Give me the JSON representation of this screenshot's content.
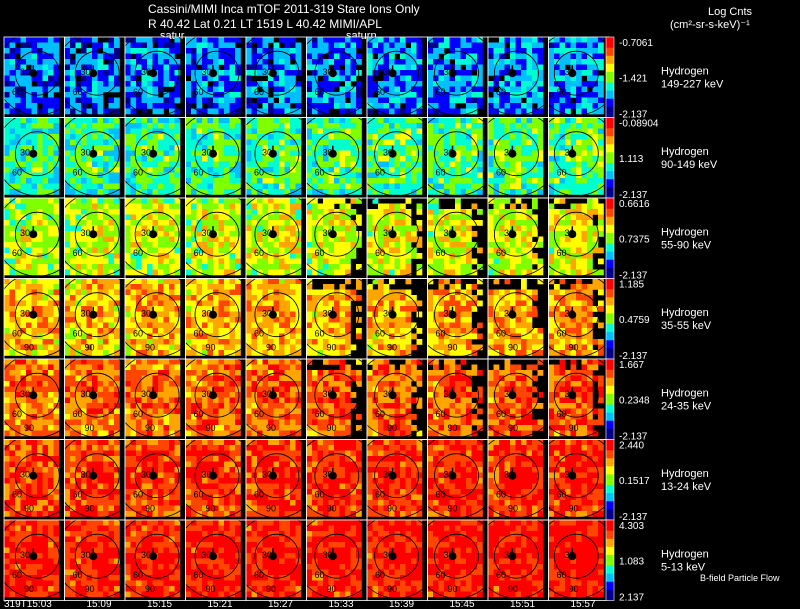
{
  "header": {
    "title": "Cassini/MIMI Inca mTOF  2011-319   Stare   Ions Only",
    "subtitle": "R       40.42  Lat 0.21  LT 1519  L       40.42   MIMI/APL",
    "saturn_label_1": "satur",
    "saturn_label_2": "saturn",
    "units_title": "Log Cnts",
    "units_sub": "(cm²-sr-s-keV)⁻¹"
  },
  "footer": {
    "times": [
      "319T15:03",
      "15:09",
      "15:15",
      "15:21",
      "15:27",
      "15:33",
      "15:39",
      "15:45",
      "15:51",
      "15:57"
    ],
    "note": "B-field Particle Flow"
  },
  "contour_labels": [
    "30",
    "60",
    "90"
  ],
  "colors": {
    "background": "#000000",
    "grid_line": "#ffffff",
    "scale": [
      "#00008b",
      "#0000ff",
      "#00bfff",
      "#00ffd0",
      "#7fff00",
      "#ffff00",
      "#ffa500",
      "#ff4500",
      "#ff0000"
    ]
  },
  "chart_data": {
    "type": "heatmap",
    "title": "Cassini/MIMI Inca mTOF  2011-319   Stare   Ions Only",
    "x": [
      "319T15:03",
      "15:09",
      "15:15",
      "15:21",
      "15:27",
      "15:33",
      "15:39",
      "15:45",
      "15:51",
      "15:57"
    ],
    "rows": [
      {
        "species": "Hydrogen",
        "energy": "149-227 keV",
        "max": "-0.7061",
        "mid": "-1.421",
        "min": "-2.137",
        "level": 0.18
      },
      {
        "species": "Hydrogen",
        "energy": "90-149 keV",
        "max": "-0.08904",
        "mid": "1.113",
        "min": "-2.137",
        "level": 0.38
      },
      {
        "species": "Hydrogen",
        "energy": "55-90 keV",
        "max": "0.6616",
        "mid": "0.7375",
        "min": "-2.137",
        "level": 0.52
      },
      {
        "species": "Hydrogen",
        "energy": "35-55 keV",
        "max": "1.185",
        "mid": "0.4759",
        "min": "-2.137",
        "level": 0.64
      },
      {
        "species": "Hydrogen",
        "energy": "24-35 keV",
        "max": "1.667",
        "mid": "0.2348",
        "min": "-2.137",
        "level": 0.74
      },
      {
        "species": "Hydrogen",
        "energy": "13-24 keV",
        "max": "2.440",
        "mid": "0.1517",
        "min": "-2.137",
        "level": 0.82
      },
      {
        "species": "Hydrogen",
        "energy": "5-13 keV",
        "max": "4.303",
        "mid": "1.083",
        "min": "2.137",
        "level": 0.86
      }
    ],
    "colorbar": "blue-to-red log counts"
  }
}
